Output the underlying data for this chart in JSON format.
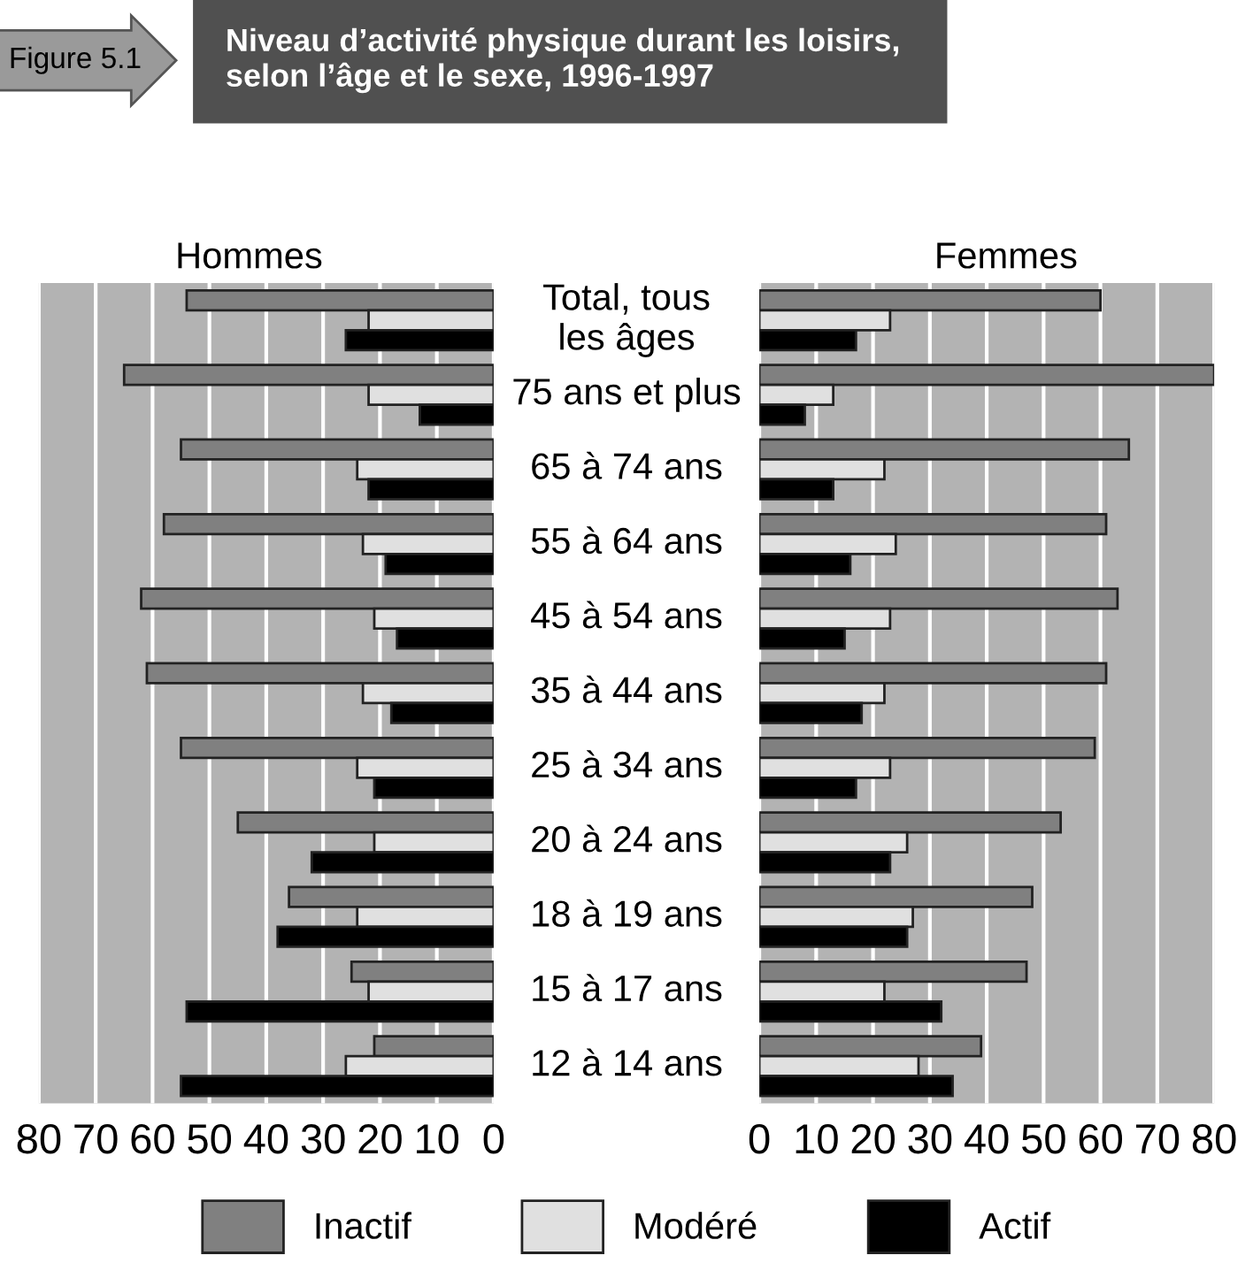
{
  "chart_data": [
    {
      "type": "bar",
      "orientation": "horizontal",
      "title": "Hommes",
      "annotations": [
        "Figure 5.1",
        "Niveau d’activité physique durant les loisirs,\nselon l’âge et le sexe, 1996-1997"
      ],
      "categories": [
        "Total, tous\nles âges",
        "75 ans et plus",
        "65 à 74 ans",
        "55 à 64 ans",
        "45 à 54 ans",
        "35 à 44 ans",
        "25 à 34 ans",
        "20 à 24 ans",
        "18 à 19 ans",
        "15 à 17 ans",
        "12 à 14 ans"
      ],
      "series": [
        {
          "name": "Inactif",
          "color": "#808080",
          "values": [
            54,
            65,
            55,
            58,
            62,
            61,
            55,
            45,
            36,
            25,
            21
          ]
        },
        {
          "name": "Modéré",
          "color": "#e0e0e0",
          "values": [
            22,
            22,
            24,
            23,
            21,
            23,
            24,
            21,
            24,
            22,
            26
          ]
        },
        {
          "name": "Actif",
          "color": "#000000",
          "values": [
            26,
            13,
            22,
            19,
            17,
            18,
            21,
            32,
            38,
            54,
            55
          ]
        }
      ],
      "xlim": [
        80,
        0
      ],
      "xticks": [
        80,
        70,
        60,
        50,
        40,
        30,
        20,
        10,
        0
      ],
      "grid": "x",
      "legend": "bottom"
    },
    {
      "type": "bar",
      "orientation": "horizontal",
      "title": "Femmes",
      "categories": [
        null,
        null,
        null,
        null,
        null,
        null,
        null,
        null,
        null,
        null,
        null
      ],
      "series": [
        {
          "color": "#808080",
          "values": [
            60,
            80,
            65,
            61,
            63,
            61,
            59,
            53,
            48,
            47,
            39
          ]
        },
        {
          "color": "#e0e0e0",
          "values": [
            23,
            13,
            22,
            24,
            23,
            22,
            23,
            26,
            27,
            22,
            28
          ]
        },
        {
          "color": "#000000",
          "values": [
            17,
            8,
            13,
            16,
            15,
            18,
            17,
            23,
            26,
            32,
            34
          ]
        }
      ],
      "xlim": [
        0,
        80
      ],
      "xticks": [
        0,
        10,
        20,
        30,
        40,
        50,
        60,
        70,
        80
      ],
      "grid": "x"
    }
  ]
}
